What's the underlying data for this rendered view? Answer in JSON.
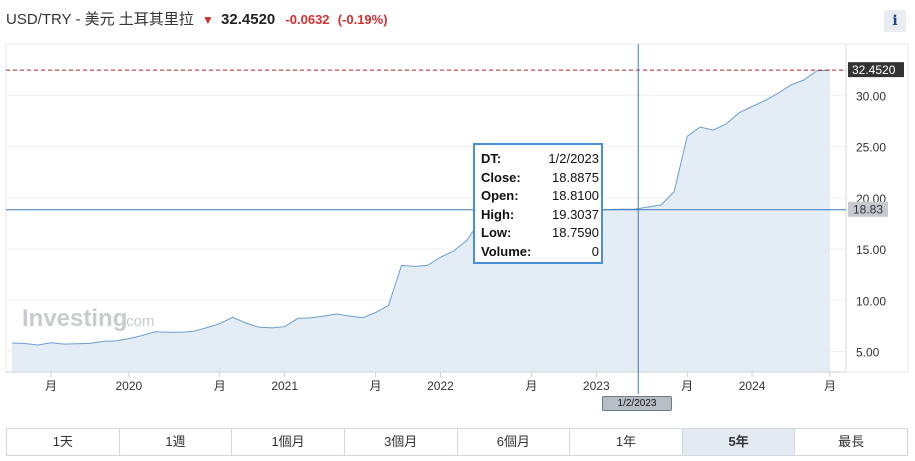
{
  "header": {
    "pair": "USD/TRY - 美元 土耳其里拉",
    "arrow_icon": "down-arrow-icon",
    "last": "32.4520",
    "change": "-0.0632",
    "change_pct": "(-0.19%)",
    "info": "i"
  },
  "crosshair": {
    "date_label": "1/2/2023",
    "price_label": "18.83",
    "price": 18.83,
    "date_index": 48
  },
  "current_price_label": "32.4520",
  "tooltip": {
    "rows": [
      {
        "k": "DT:",
        "v": "1/2/2023"
      },
      {
        "k": "Close:",
        "v": "18.8875"
      },
      {
        "k": "Open:",
        "v": "18.8100"
      },
      {
        "k": "High:",
        "v": "19.3037"
      },
      {
        "k": "Low:",
        "v": "18.7590"
      },
      {
        "k": "Volume:",
        "v": "0"
      }
    ]
  },
  "watermark": {
    "main": "Investing",
    "suffix": ".com"
  },
  "tabs": [
    {
      "label": "1天",
      "active": false
    },
    {
      "label": "1週",
      "active": false
    },
    {
      "label": "1個月",
      "active": false
    },
    {
      "label": "3個月",
      "active": false
    },
    {
      "label": "6個月",
      "active": false
    },
    {
      "label": "1年",
      "active": false
    },
    {
      "label": "5年",
      "active": true
    },
    {
      "label": "最長",
      "active": false
    }
  ],
  "colors": {
    "line": "#6a9fd0",
    "fill": "#e4edf6",
    "crosshair": "#3e78b8",
    "current_line": "#b52020",
    "down": "#d32f2f"
  },
  "chart_data": {
    "type": "area",
    "title": "",
    "xlabel": "",
    "ylabel": "",
    "ylim": [
      3.0,
      35.0
    ],
    "yticks": [
      "5.00",
      "10.00",
      "15.00",
      "20.00",
      "25.00",
      "30.00"
    ],
    "xticks": [
      {
        "label": "月",
        "i": 3
      },
      {
        "label": "2020",
        "i": 9
      },
      {
        "label": "月",
        "i": 16
      },
      {
        "label": "2021",
        "i": 21
      },
      {
        "label": "月",
        "i": 28
      },
      {
        "label": "2022",
        "i": 33
      },
      {
        "label": "月",
        "i": 40
      },
      {
        "label": "2023",
        "i": 45
      },
      {
        "label": "月",
        "i": 52
      },
      {
        "label": "2024",
        "i": 57
      },
      {
        "label": "月",
        "i": 63
      }
    ],
    "series": [
      {
        "values": [
          5.83,
          5.78,
          5.63,
          5.85,
          5.72,
          5.75,
          5.79,
          5.99,
          6.03,
          6.26,
          6.55,
          6.92,
          6.87,
          6.87,
          6.98,
          7.33,
          7.72,
          8.34,
          7.78,
          7.38,
          7.3,
          7.42,
          8.23,
          8.28,
          8.45,
          8.67,
          8.45,
          8.3,
          8.8,
          9.5,
          13.4,
          13.3,
          13.4,
          14.2,
          14.8,
          15.8,
          17.6,
          18.3,
          18.7,
          18.6,
          18.55,
          18.6,
          18.6,
          18.7,
          18.75,
          18.8,
          18.85,
          18.87,
          18.89,
          19.1,
          19.3,
          20.6,
          26.0,
          26.9,
          26.6,
          27.2,
          28.3,
          28.9,
          29.5,
          30.2,
          31.0,
          31.5,
          32.4,
          32.45
        ]
      }
    ]
  }
}
